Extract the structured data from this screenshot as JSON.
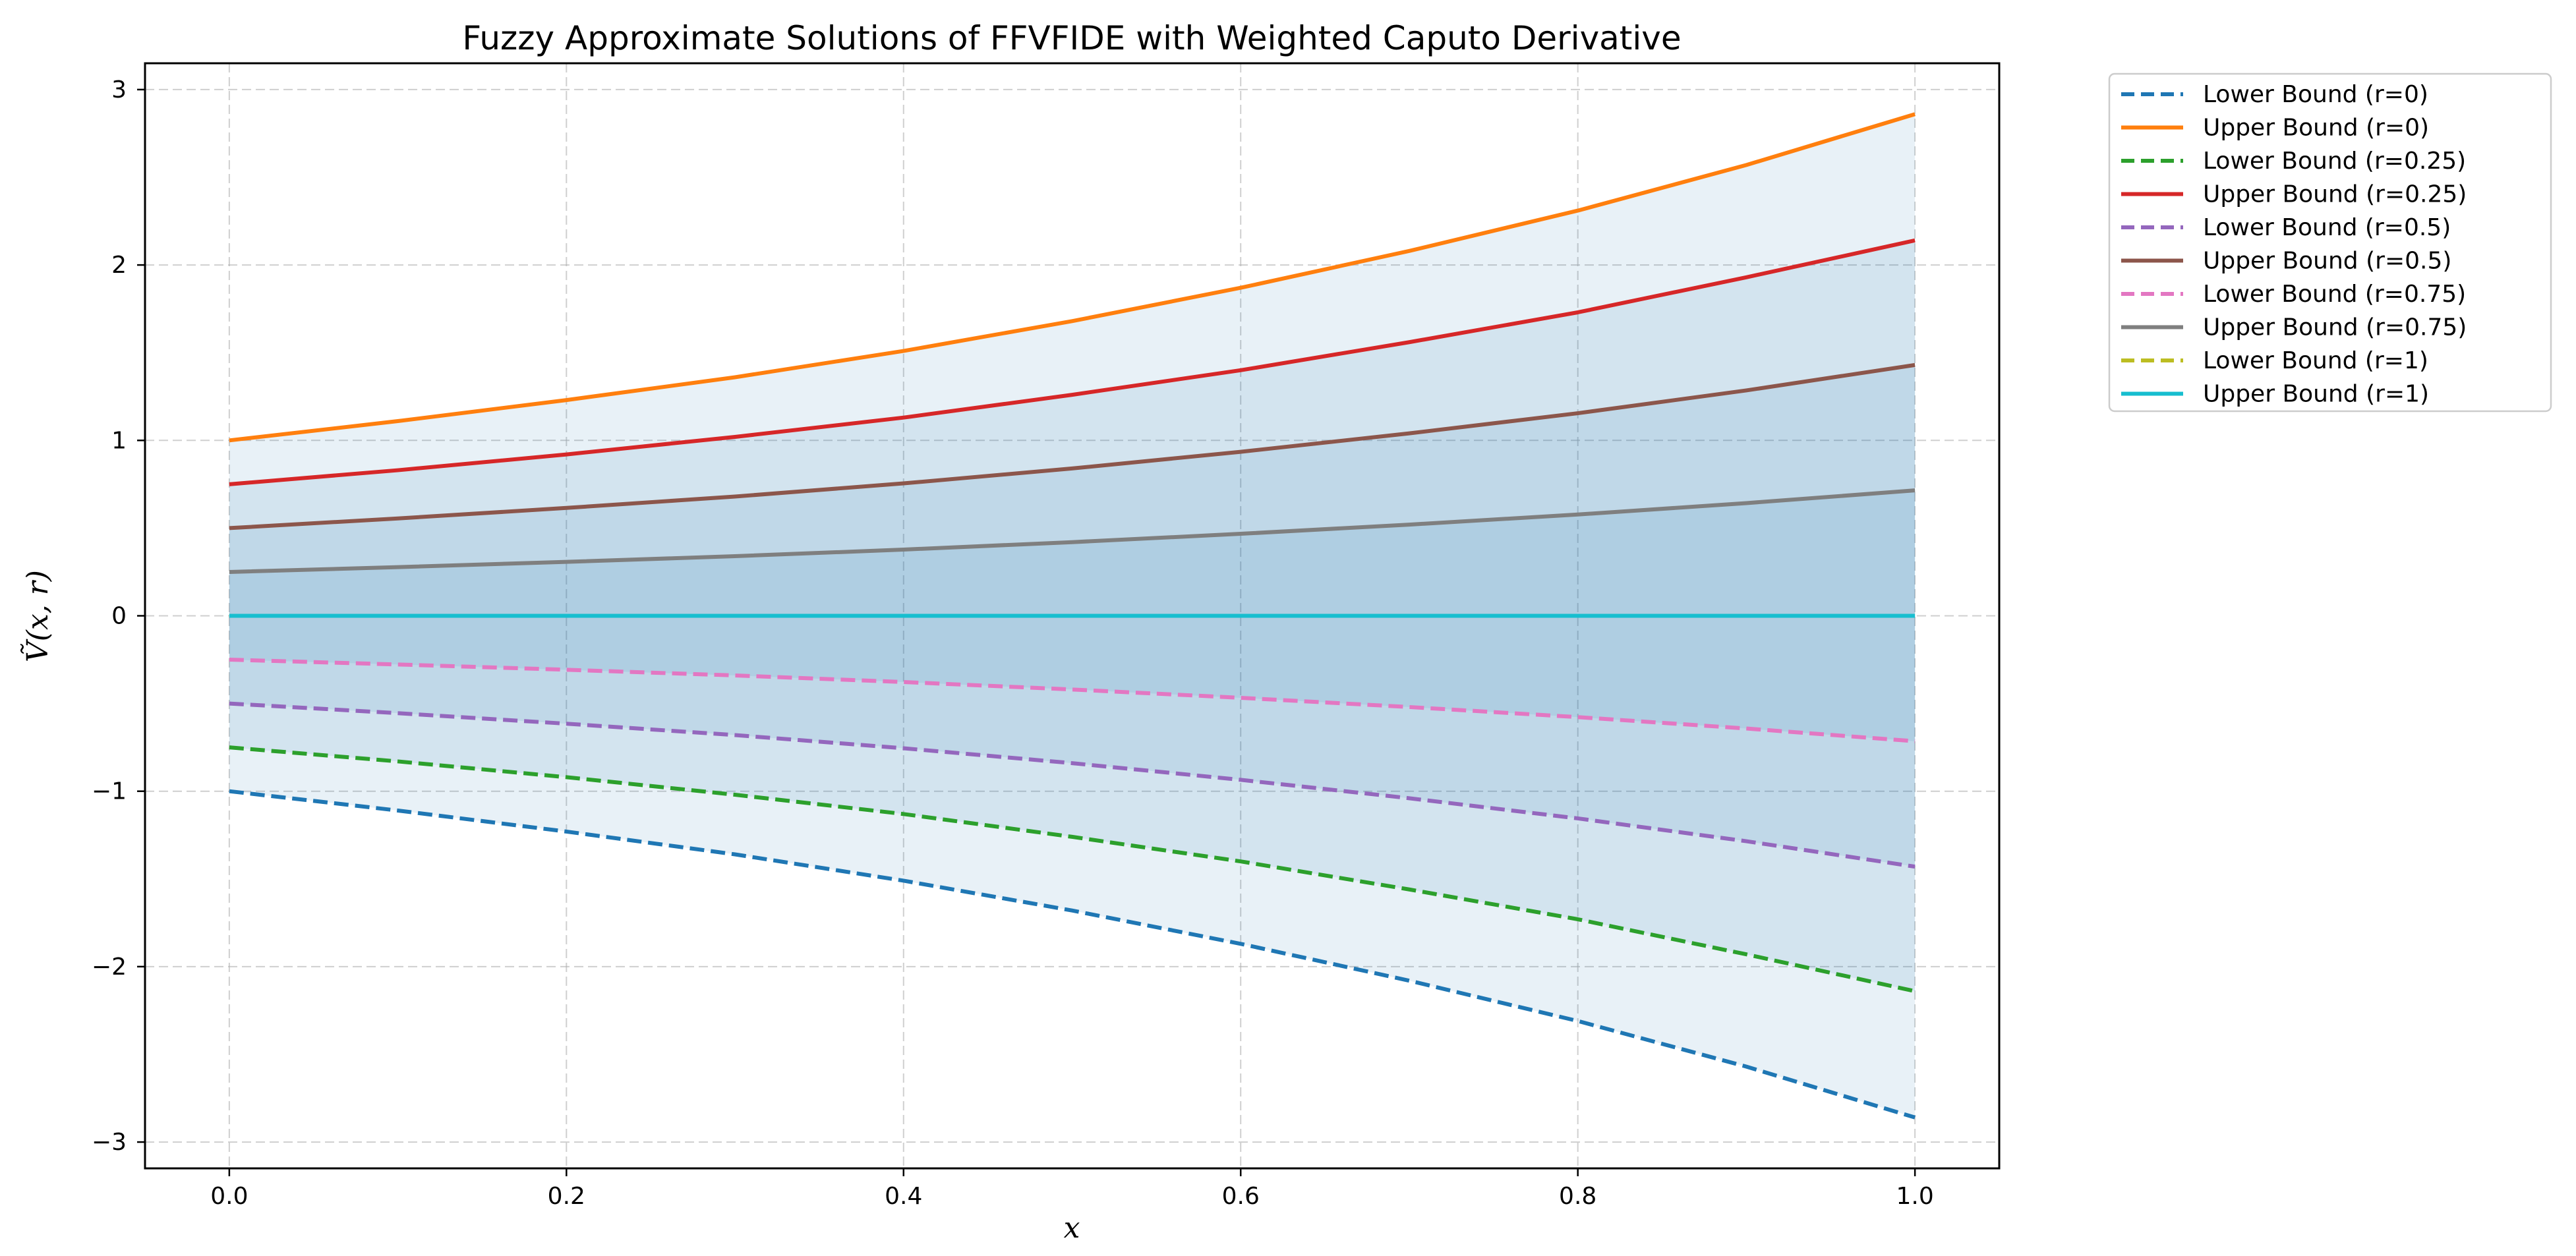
{
  "chart_data": {
    "type": "line",
    "title": "Fuzzy Approximate Solutions of FFVFIDE with Weighted Caputo Derivative",
    "xlabel": "x",
    "ylabel": "Ṽ(x, r)",
    "xlim": [
      -0.05,
      1.05
    ],
    "ylim": [
      -3.15,
      3.15
    ],
    "xticks": [
      0.0,
      0.2,
      0.4,
      0.6,
      0.8,
      1.0
    ],
    "xtick_labels": [
      "0.0",
      "0.2",
      "0.4",
      "0.6",
      "0.8",
      "1.0"
    ],
    "yticks": [
      -3,
      -2,
      -1,
      0,
      1,
      2,
      3
    ],
    "ytick_labels": [
      "−3",
      "−2",
      "−1",
      "0",
      "1",
      "2",
      "3"
    ],
    "grid": true,
    "legend_position": "outside-top-right",
    "x": [
      0.0,
      0.1,
      0.2,
      0.3,
      0.4,
      0.5,
      0.6,
      0.7,
      0.8,
      0.9,
      1.0
    ],
    "series": [
      {
        "name": "Lower Bound (r=0)",
        "r": 0,
        "bound": "lower",
        "color": "#1f77b4",
        "dashed": true,
        "values": [
          -1.0,
          -1.11,
          -1.23,
          -1.36,
          -1.51,
          -1.68,
          -1.87,
          -2.08,
          -2.31,
          -2.57,
          -2.86
        ]
      },
      {
        "name": "Upper Bound (r=0)",
        "r": 0,
        "bound": "upper",
        "color": "#ff7f0e",
        "dashed": false,
        "values": [
          1.0,
          1.11,
          1.23,
          1.36,
          1.51,
          1.68,
          1.87,
          2.08,
          2.31,
          2.57,
          2.86
        ]
      },
      {
        "name": "Lower Bound (r=0.25)",
        "r": 0.25,
        "bound": "lower",
        "color": "#2ca02c",
        "dashed": true,
        "values": [
          -0.75,
          -0.83,
          -0.92,
          -1.02,
          -1.13,
          -1.26,
          -1.4,
          -1.56,
          -1.73,
          -1.93,
          -2.14
        ]
      },
      {
        "name": "Upper Bound (r=0.25)",
        "r": 0.25,
        "bound": "upper",
        "color": "#d62728",
        "dashed": false,
        "values": [
          0.75,
          0.83,
          0.92,
          1.02,
          1.13,
          1.26,
          1.4,
          1.56,
          1.73,
          1.93,
          2.14
        ]
      },
      {
        "name": "Lower Bound (r=0.5)",
        "r": 0.5,
        "bound": "lower",
        "color": "#9467bd",
        "dashed": true,
        "values": [
          -0.5,
          -0.555,
          -0.615,
          -0.68,
          -0.755,
          -0.84,
          -0.935,
          -1.04,
          -1.155,
          -1.285,
          -1.43
        ]
      },
      {
        "name": "Upper Bound (r=0.5)",
        "r": 0.5,
        "bound": "upper",
        "color": "#8c564b",
        "dashed": false,
        "values": [
          0.5,
          0.555,
          0.615,
          0.68,
          0.755,
          0.84,
          0.935,
          1.04,
          1.155,
          1.285,
          1.43
        ]
      },
      {
        "name": "Lower Bound (r=0.75)",
        "r": 0.75,
        "bound": "lower",
        "color": "#e377c2",
        "dashed": true,
        "values": [
          -0.25,
          -0.2775,
          -0.3075,
          -0.34,
          -0.3775,
          -0.42,
          -0.4675,
          -0.52,
          -0.5775,
          -0.6425,
          -0.715
        ]
      },
      {
        "name": "Upper Bound (r=0.75)",
        "r": 0.75,
        "bound": "upper",
        "color": "#7f7f7f",
        "dashed": false,
        "values": [
          0.25,
          0.2775,
          0.3075,
          0.34,
          0.3775,
          0.42,
          0.4675,
          0.52,
          0.5775,
          0.6425,
          0.715
        ]
      },
      {
        "name": "Lower Bound (r=1)",
        "r": 1,
        "bound": "lower",
        "color": "#bcbd22",
        "dashed": true,
        "values": [
          0,
          0,
          0,
          0,
          0,
          0,
          0,
          0,
          0,
          0,
          0
        ]
      },
      {
        "name": "Upper Bound (r=1)",
        "r": 1,
        "bound": "upper",
        "color": "#17becf",
        "dashed": false,
        "values": [
          0,
          0,
          0,
          0,
          0,
          0,
          0,
          0,
          0,
          0,
          0
        ]
      }
    ],
    "band_fill_color": "#1f77b4",
    "band_fill_opacity": 0.1
  }
}
